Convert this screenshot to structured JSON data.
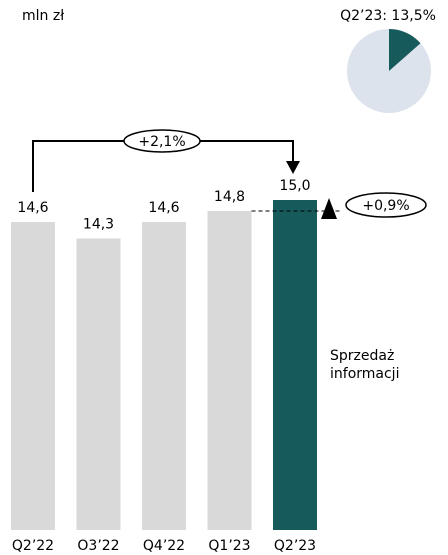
{
  "chart_data": [
    {
      "type": "bar",
      "unit": "mln zł",
      "categories": [
        "Q2’22",
        "O3’22",
        "Q4’22",
        "Q1’23",
        "Q2’23"
      ],
      "values": [
        14.6,
        14.3,
        14.6,
        14.8,
        15.0
      ],
      "value_labels": [
        "14,6",
        "14,3",
        "14,6",
        "14,8",
        "15,0"
      ],
      "colors": [
        "#d9d9d9",
        "#d9d9d9",
        "#d9d9d9",
        "#d9d9d9",
        "#175a5c"
      ],
      "ylim": [
        9,
        15.8
      ],
      "series_label": "Sprzedaż informacji",
      "annotations": [
        "+2,1%",
        "+0,9%"
      ]
    },
    {
      "type": "pie",
      "values": [
        13.5
      ],
      "value_labels": [
        "Q2’23: 13,5%"
      ],
      "color": "#175a5c",
      "background_color": "#dde3ec"
    }
  ]
}
